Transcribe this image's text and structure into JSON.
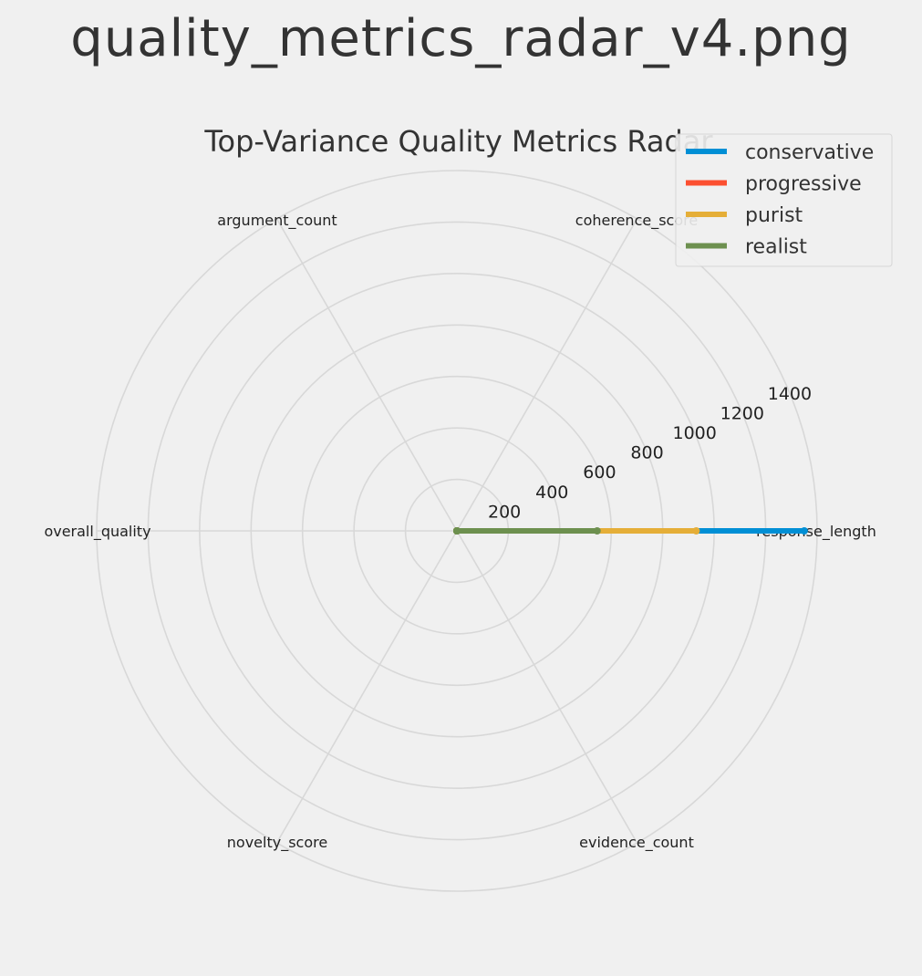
{
  "figure_title": "quality_metrics_radar_v4.png",
  "chart_data": {
    "type": "radar",
    "title": "Top-Variance Quality Metrics Radar",
    "axes": [
      "response_length",
      "coherence_score",
      "argument_count",
      "overall_quality",
      "novelty_score",
      "evidence_count"
    ],
    "r_ticks": [
      200,
      400,
      600,
      800,
      1000,
      1200,
      1400
    ],
    "r_max": 1400,
    "grid": true,
    "legend_position": "top-right",
    "series": [
      {
        "name": "conservative",
        "color": "#008fd5",
        "values": [
          1350,
          0,
          0,
          0,
          0,
          0
        ]
      },
      {
        "name": "progressive",
        "color": "#fc4f30",
        "values": [
          0,
          0,
          0,
          0,
          0,
          0
        ]
      },
      {
        "name": "purist",
        "color": "#e5ae38",
        "values": [
          930,
          0,
          0,
          0,
          0,
          0
        ]
      },
      {
        "name": "realist",
        "color": "#6d904f",
        "values": [
          545,
          0,
          0,
          0,
          0,
          0
        ]
      }
    ]
  }
}
